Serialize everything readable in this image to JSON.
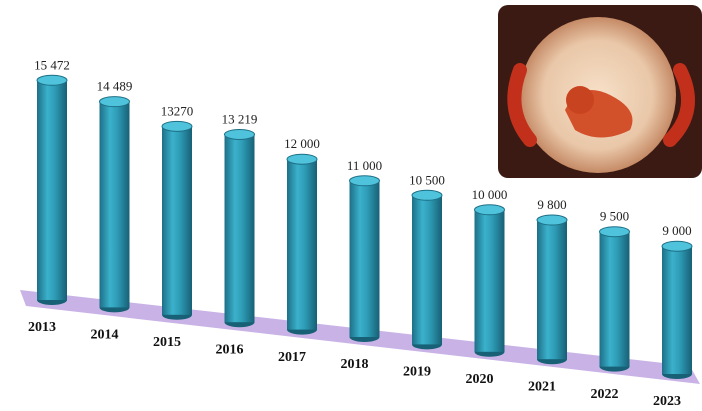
{
  "chart_data": {
    "type": "bar3d",
    "categories": [
      "2013",
      "2014",
      "2015",
      "2016",
      "2017",
      "2018",
      "2019",
      "2020",
      "2021",
      "2022",
      "2023"
    ],
    "values": [
      15472,
      14489,
      13270,
      13219,
      12000,
      11000,
      10500,
      10000,
      9800,
      9500,
      9000
    ],
    "value_labels": [
      "15 472",
      "14 489",
      "13270",
      "13 219",
      "12 000",
      "11 000",
      "10 500",
      "10 000",
      "9 800",
      "9 500",
      "9 000"
    ],
    "color": "#2e9bb5",
    "floor_color": "#c9b3e6"
  }
}
